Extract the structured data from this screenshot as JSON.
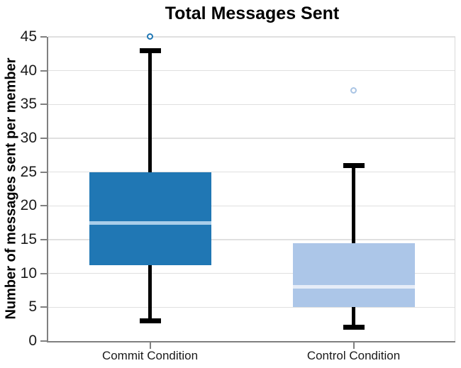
{
  "chart_data": {
    "type": "box",
    "title": "Total Messages Sent",
    "xlabel": "",
    "ylabel": "Number of messages sent per member",
    "ylim": [
      0,
      45
    ],
    "yticks": [
      0,
      5,
      10,
      15,
      20,
      25,
      30,
      35,
      40,
      45
    ],
    "grid": true,
    "legend": "none",
    "categories": [
      "Commit Condition",
      "Control Condition"
    ],
    "series": [
      {
        "name": "Commit Condition",
        "whisker_low": 3,
        "q1": 11.25,
        "median": 17.5,
        "q3": 25,
        "whisker_high": 43,
        "outliers": [
          45
        ],
        "box_color": "#2077B4",
        "median_color": "#A9CDE9",
        "outlier_color": "#2077B4"
      },
      {
        "name": "Control Condition",
        "whisker_low": 2,
        "q1": 5,
        "median": 8,
        "q3": 14.5,
        "whisker_high": 26,
        "outliers": [
          37
        ],
        "box_color": "#ACC6E8",
        "median_color": "#E6EDF8",
        "outlier_color": "#A9C4E4"
      }
    ],
    "colors": {
      "whisker": "#000000",
      "gridline": "#E0E0E0",
      "spine": "#808080",
      "right_spine": "#D9D9D9",
      "tick_label": "#1A1A1A",
      "background": "#FFFFFF"
    }
  }
}
